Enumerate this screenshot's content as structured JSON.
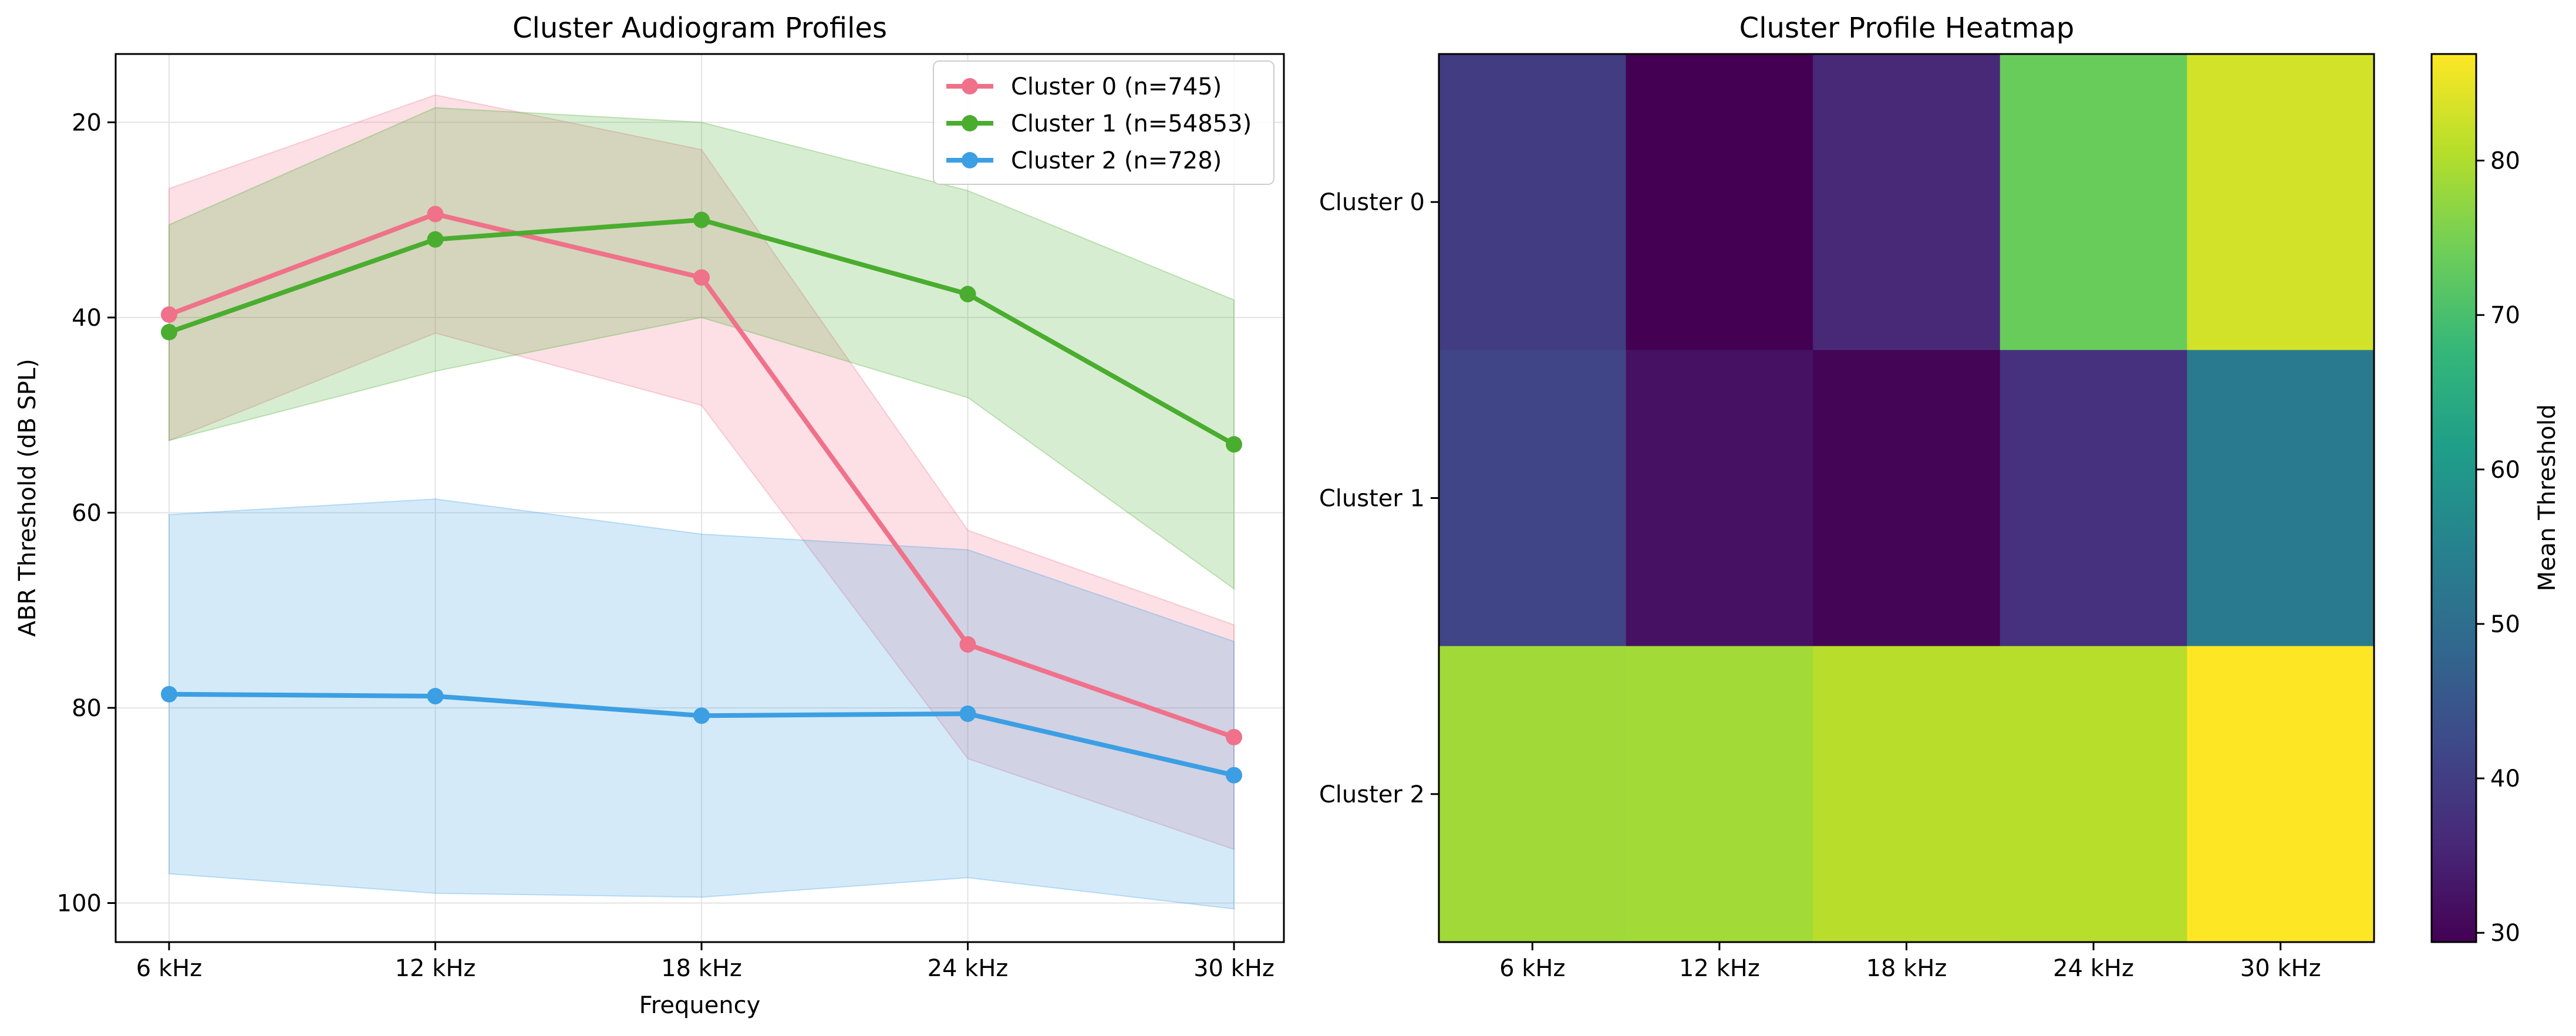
{
  "chart_data": [
    {
      "type": "line",
      "title": "Cluster Audiogram Profiles",
      "xlabel": "Frequency",
      "ylabel": "ABR Threshold (dB SPL)",
      "categories": [
        "6 kHz",
        "12 kHz",
        "18 kHz",
        "24 kHz",
        "30 kHz"
      ],
      "ylim": [
        104,
        13
      ],
      "y_inverted": true,
      "yticks": [
        20,
        40,
        60,
        80,
        100
      ],
      "grid": true,
      "legend_position": "top-right",
      "series": [
        {
          "name": "Cluster 0 (n=745)",
          "color": "#f0718a",
          "values": [
            39.7,
            29.4,
            35.9,
            73.5,
            83.0
          ],
          "band_upper": [
            26.8,
            17.2,
            22.8,
            61.8,
            71.5
          ],
          "band_lower": [
            52.6,
            41.6,
            49.0,
            85.2,
            94.5
          ]
        },
        {
          "name": "Cluster 1 (n=54853)",
          "color": "#4aad2f",
          "values": [
            41.5,
            32.0,
            30.0,
            37.6,
            53.0
          ],
          "band_upper": [
            30.5,
            18.5,
            20.0,
            27.0,
            38.2
          ],
          "band_lower": [
            52.6,
            45.5,
            40.0,
            48.2,
            67.8
          ]
        },
        {
          "name": "Cluster 2 (n=728)",
          "color": "#3c9fe3",
          "values": [
            78.6,
            78.8,
            80.8,
            80.6,
            86.9
          ],
          "band_upper": [
            60.2,
            58.6,
            62.2,
            63.8,
            73.2
          ],
          "band_lower": [
            97.0,
            99.0,
            99.4,
            97.4,
            100.6
          ]
        }
      ]
    },
    {
      "type": "heatmap",
      "title": "Cluster Profile Heatmap",
      "columns": [
        "6 kHz",
        "12 kHz",
        "18 kHz",
        "24 kHz",
        "30 kHz"
      ],
      "rows": [
        "Cluster 0",
        "Cluster 1",
        "Cluster 2"
      ],
      "values": [
        [
          39.7,
          29.4,
          35.9,
          73.5,
          83.0
        ],
        [
          41.5,
          32.0,
          30.0,
          37.6,
          53.0
        ],
        [
          78.6,
          78.8,
          80.8,
          80.6,
          86.9
        ]
      ],
      "colormap": "viridis",
      "vmin": 29.4,
      "vmax": 86.9,
      "colorbar_label": "Mean Threshold",
      "colorbar_ticks": [
        30,
        40,
        50,
        60,
        70,
        80
      ]
    }
  ]
}
